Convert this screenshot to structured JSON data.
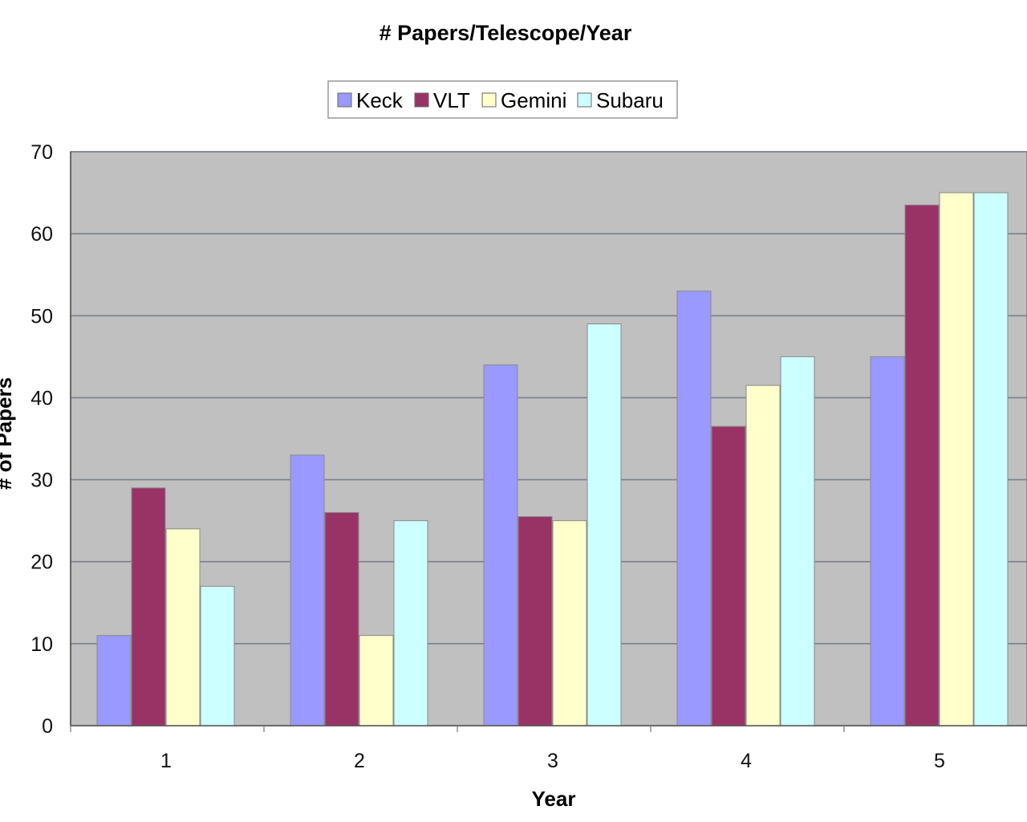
{
  "chart_data": {
    "type": "bar",
    "title": "# Papers/Telescope/Year",
    "xlabel": "Year",
    "ylabel": "# of Papers",
    "categories": [
      "1",
      "2",
      "3",
      "4",
      "5"
    ],
    "series": [
      {
        "name": "Keck",
        "color": "#9999ff",
        "values": [
          11,
          33,
          44,
          53,
          45
        ]
      },
      {
        "name": "VLT",
        "color": "#993366",
        "values": [
          29,
          26,
          25.5,
          36.5,
          63.5
        ]
      },
      {
        "name": "Gemini",
        "color": "#ffffcc",
        "values": [
          24,
          11,
          25,
          41.5,
          65
        ]
      },
      {
        "name": "Subaru",
        "color": "#ccffff",
        "values": [
          17,
          25,
          49,
          45,
          65
        ]
      }
    ],
    "ylim": [
      0,
      70
    ],
    "yticks": [
      "0",
      "10",
      "20",
      "30",
      "40",
      "50",
      "60",
      "70"
    ],
    "grid": true,
    "plot_background": "#c0c0c0",
    "legend_position": "top-center"
  }
}
